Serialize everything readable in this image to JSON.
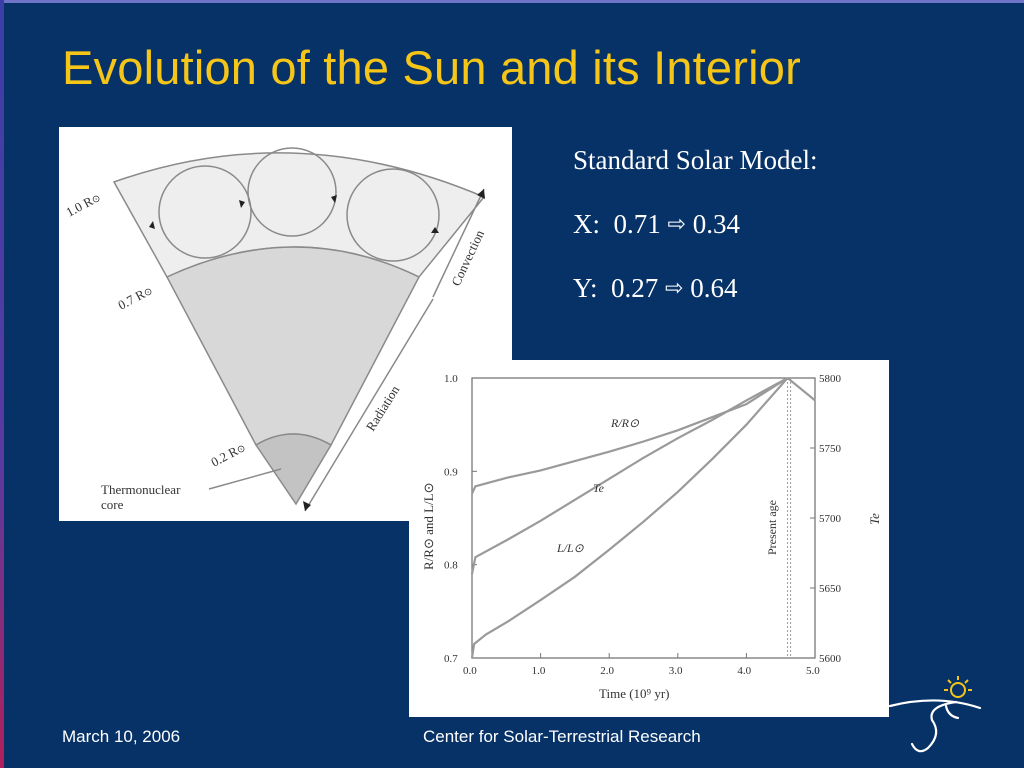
{
  "slide": {
    "title": "Evolution of the Sun and its Interior",
    "model": {
      "heading": "Standard Solar Model:",
      "x_label": "X:",
      "x_from": "0.71",
      "x_to": "0.34",
      "y_label": "Y:",
      "y_from": "0.27",
      "y_to": "0.64",
      "arrow_icon": "hollow-right-arrow-icon"
    }
  },
  "wedge_diagram": {
    "labels": {
      "r10": "1.0 R",
      "r07": "0.7 R",
      "r02": "0.2 R",
      "sun_symbol": "⊙",
      "convection": "Convection",
      "radiation": "Radiation",
      "core_line1": "Thermonuclear",
      "core_line2": "core"
    },
    "colors": {
      "convection": "#eeeeee",
      "radiation": "#d8d8d8",
      "core": "#c3c3c3",
      "outline": "#8a8a8a"
    }
  },
  "evolution_plot": {
    "left_axis_label": "R/R⊙  and  L/L⊙",
    "right_axis_label": "Te",
    "x_axis_label": "Time (10⁹ yr)",
    "present_age_label": "Present age",
    "left_ticks": [
      "0.7",
      "0.8",
      "0.9",
      "1.0"
    ],
    "right_ticks": [
      "5600",
      "5650",
      "5700",
      "5750",
      "5800"
    ],
    "x_ticks": [
      "0.0",
      "1.0",
      "2.0",
      "3.0",
      "4.0",
      "5.0"
    ],
    "curve_labels": {
      "radius": "R/R⊙",
      "teff": "Te",
      "luminosity": "L/L⊙"
    }
  },
  "chart_data": {
    "type": "line",
    "xlabel": "Time (10⁹ yr)",
    "ylabel": "R/R⊙ and L/L⊙",
    "y2label": "Te",
    "xlim": [
      0,
      5
    ],
    "ylim": [
      0.7,
      1.0
    ],
    "y2lim": [
      5600,
      5800
    ],
    "present_age": 4.6,
    "series": [
      {
        "name": "R/R⊙",
        "axis": "left",
        "x": [
          0,
          0.05,
          0.5,
          1.0,
          1.5,
          2.0,
          2.5,
          3.0,
          3.5,
          4.0,
          4.6
        ],
        "y": [
          0.876,
          0.884,
          0.893,
          0.901,
          0.911,
          0.921,
          0.932,
          0.944,
          0.958,
          0.972,
          1.0
        ]
      },
      {
        "name": "Te",
        "axis": "right",
        "x": [
          0,
          0.05,
          0.5,
          1.0,
          1.5,
          2.0,
          2.5,
          3.0,
          3.5,
          4.0,
          4.6
        ],
        "y": [
          5660,
          5672,
          5684,
          5698,
          5713,
          5728,
          5743,
          5757,
          5770,
          5784,
          5800
        ]
      },
      {
        "name": "L/L⊙",
        "axis": "left",
        "x": [
          0,
          0.03,
          0.2,
          0.5,
          1.0,
          1.5,
          2.0,
          2.5,
          3.0,
          3.5,
          4.0,
          4.6
        ],
        "y": [
          0.7,
          0.715,
          0.725,
          0.738,
          0.762,
          0.787,
          0.816,
          0.846,
          0.878,
          0.913,
          0.95,
          1.0
        ]
      },
      {
        "name": "R/R⊙ (post present age)",
        "axis": "left",
        "x": [
          4.6,
          5.0
        ],
        "y": [
          1.0,
          0.976
        ]
      }
    ]
  },
  "footer": {
    "date": "March 10, 2006",
    "organization": "Center for Solar-Terrestrial Research"
  },
  "logo": {
    "icon": "sun-swirl-logo-icon",
    "accent": "#f5c518"
  }
}
